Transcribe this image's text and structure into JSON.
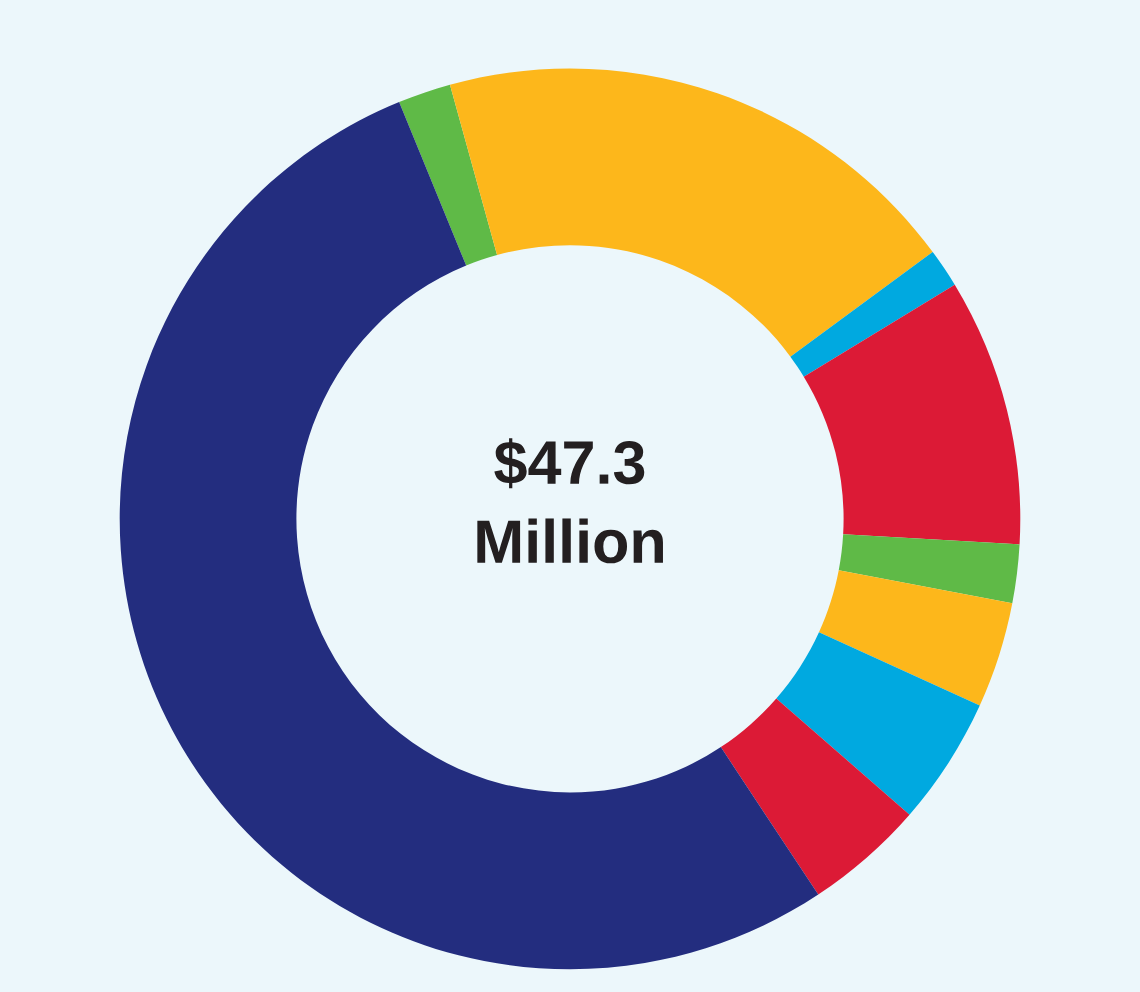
{
  "chart_data": {
    "type": "donut",
    "categories": [
      null,
      null,
      null,
      null,
      null,
      null,
      null,
      null,
      null
    ],
    "values": [
      1.9,
      19.2,
      1.4,
      9.6,
      2.1,
      3.8,
      4.6,
      4.3,
      53.1
    ],
    "colors": [
      "#5fba47",
      "#fdb71b",
      "#00a9e0",
      "#dc1a36",
      "#5fba47",
      "#fdb71b",
      "#00a9e0",
      "#dc1a36",
      "#232d7f"
    ],
    "annotations": [
      "$47.3\nMillion"
    ],
    "legend": false
  }
}
